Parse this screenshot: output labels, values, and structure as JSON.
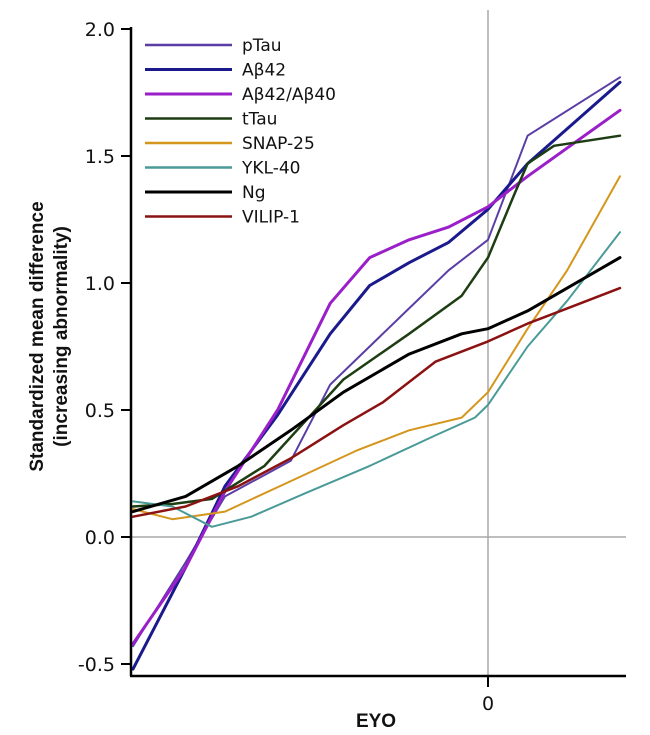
{
  "chart_data": {
    "type": "line",
    "title": "",
    "xlabel": "EYO",
    "ylabel": "Standardized mean difference",
    "ylabel_sub": "(increasing abnormality)",
    "xlim": [
      -27,
      10
    ],
    "ylim": [
      -0.5,
      2.0
    ],
    "yticks": [
      {
        "value": 2.0,
        "label": "2.0"
      },
      {
        "value": 1.5,
        "label": "1.5"
      },
      {
        "value": 1.0,
        "label": "1.0"
      },
      {
        "value": 0.5,
        "label": "0.5"
      },
      {
        "value": 0.0,
        "label": "0.0"
      },
      {
        "value": -0.5,
        "label": "-0.5"
      }
    ],
    "xticks": [
      {
        "value": 0,
        "label": "0"
      }
    ],
    "reference_lines": {
      "y": 0.0,
      "x": 0
    },
    "grid": false,
    "legend_position": "top-left",
    "series": [
      {
        "name": "pTau",
        "color": "#5a3ea6",
        "width": 2,
        "points": [
          [
            -27,
            -0.43
          ],
          [
            -23,
            -0.1
          ],
          [
            -20,
            0.16
          ],
          [
            -15,
            0.3
          ],
          [
            -12,
            0.6
          ],
          [
            -6,
            0.9
          ],
          [
            -3,
            1.05
          ],
          [
            0,
            1.17
          ],
          [
            3,
            1.58
          ],
          [
            10,
            1.81
          ]
        ]
      },
      {
        "name": "Aβ42",
        "color": "#1a1a8c",
        "width": 3,
        "points": [
          [
            -27,
            -0.52
          ],
          [
            -23,
            -0.12
          ],
          [
            -20,
            0.2
          ],
          [
            -16,
            0.48
          ],
          [
            -12,
            0.8
          ],
          [
            -9,
            0.99
          ],
          [
            -6,
            1.08
          ],
          [
            -3,
            1.16
          ],
          [
            0,
            1.29
          ],
          [
            3,
            1.47
          ],
          [
            10,
            1.79
          ]
        ]
      },
      {
        "name": "Aβ42/Aβ40",
        "color": "#9b1fc9",
        "width": 3,
        "points": [
          [
            -27,
            -0.42
          ],
          [
            -23,
            -0.12
          ],
          [
            -20,
            0.18
          ],
          [
            -16,
            0.5
          ],
          [
            -12,
            0.92
          ],
          [
            -9,
            1.1
          ],
          [
            -6,
            1.17
          ],
          [
            -3,
            1.22
          ],
          [
            0,
            1.3
          ],
          [
            3,
            1.42
          ],
          [
            10,
            1.68
          ]
        ]
      },
      {
        "name": "tTau",
        "color": "#1d3d12",
        "width": 2.5,
        "points": [
          [
            -27,
            0.12
          ],
          [
            -24,
            0.13
          ],
          [
            -21,
            0.15
          ],
          [
            -17,
            0.28
          ],
          [
            -14,
            0.45
          ],
          [
            -11,
            0.62
          ],
          [
            -6,
            0.8
          ],
          [
            -2,
            0.95
          ],
          [
            0,
            1.1
          ],
          [
            2,
            1.35
          ],
          [
            3,
            1.47
          ],
          [
            5,
            1.54
          ],
          [
            10,
            1.58
          ]
        ]
      },
      {
        "name": "SNAP-25",
        "color": "#d4961c",
        "width": 2,
        "points": [
          [
            -27,
            0.11
          ],
          [
            -24,
            0.07
          ],
          [
            -20,
            0.1
          ],
          [
            -15,
            0.22
          ],
          [
            -10,
            0.34
          ],
          [
            -6,
            0.42
          ],
          [
            -2,
            0.47
          ],
          [
            0,
            0.57
          ],
          [
            3,
            0.82
          ],
          [
            6,
            1.05
          ],
          [
            10,
            1.42
          ]
        ]
      },
      {
        "name": "YKL-40",
        "color": "#4a9a98",
        "width": 2,
        "points": [
          [
            -27,
            0.14
          ],
          [
            -24,
            0.12
          ],
          [
            -21,
            0.04
          ],
          [
            -18,
            0.08
          ],
          [
            -14,
            0.17
          ],
          [
            -9,
            0.28
          ],
          [
            -4,
            0.4
          ],
          [
            -1,
            0.47
          ],
          [
            0,
            0.52
          ],
          [
            3,
            0.75
          ],
          [
            6,
            0.93
          ],
          [
            10,
            1.2
          ]
        ]
      },
      {
        "name": "Ng",
        "color": "#000000",
        "width": 3,
        "points": [
          [
            -27,
            0.1
          ],
          [
            -23,
            0.16
          ],
          [
            -19,
            0.28
          ],
          [
            -15,
            0.42
          ],
          [
            -11,
            0.57
          ],
          [
            -6,
            0.72
          ],
          [
            -2,
            0.8
          ],
          [
            0,
            0.82
          ],
          [
            3,
            0.89
          ],
          [
            6,
            0.98
          ],
          [
            10,
            1.1
          ]
        ]
      },
      {
        "name": "VILIP-1",
        "color": "#8b1212",
        "width": 2.5,
        "points": [
          [
            -27,
            0.08
          ],
          [
            -23,
            0.12
          ],
          [
            -19,
            0.2
          ],
          [
            -15,
            0.31
          ],
          [
            -11,
            0.44
          ],
          [
            -8,
            0.53
          ],
          [
            -4,
            0.69
          ],
          [
            -2,
            0.73
          ],
          [
            0,
            0.77
          ],
          [
            3,
            0.84
          ],
          [
            6,
            0.9
          ],
          [
            10,
            0.98
          ]
        ]
      }
    ]
  }
}
